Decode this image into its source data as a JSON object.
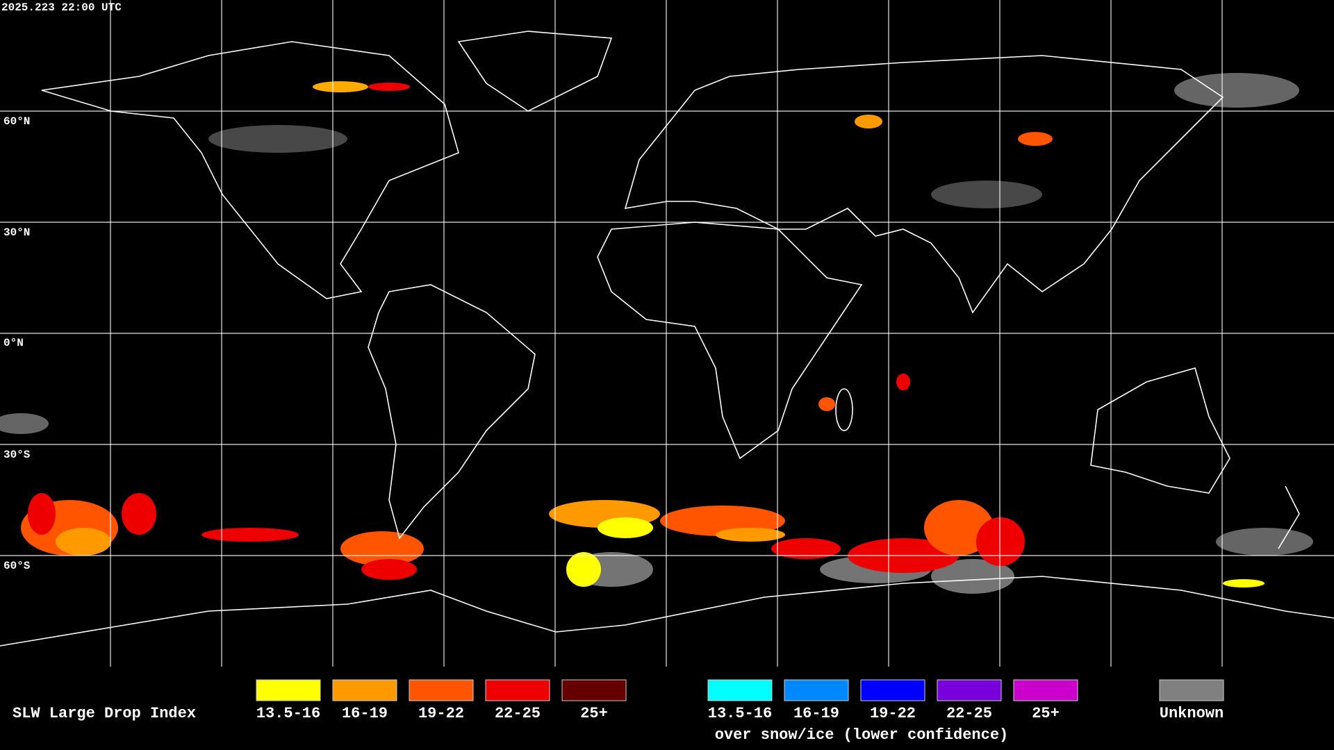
{
  "timestamp": "2025.223 22:00 UTC",
  "latitude_labels": [
    "60°N",
    "30°N",
    "0°N",
    "30°S",
    "60°S"
  ],
  "legend": {
    "title": "SLW Large Drop Index",
    "groups": [
      {
        "items": [
          {
            "label": "13.5-16",
            "color": "#ffff00"
          },
          {
            "label": "16-19",
            "color": "#ff9900"
          },
          {
            "label": "19-22",
            "color": "#ff5500"
          },
          {
            "label": "22-25",
            "color": "#ee0000"
          },
          {
            "label": "25+",
            "color": "#660000"
          }
        ]
      },
      {
        "items": [
          {
            "label": "13.5-16",
            "color": "#00ffff"
          },
          {
            "label": "16-19",
            "color": "#0088ff"
          },
          {
            "label": "19-22",
            "color": "#0000ff"
          },
          {
            "label": "22-25",
            "color": "#7700dd"
          },
          {
            "label": "25+",
            "color": "#cc00cc"
          }
        ],
        "note": "over snow/ice (lower confidence)"
      }
    ],
    "unknown": {
      "label": "Unknown",
      "color": "#808080"
    }
  }
}
